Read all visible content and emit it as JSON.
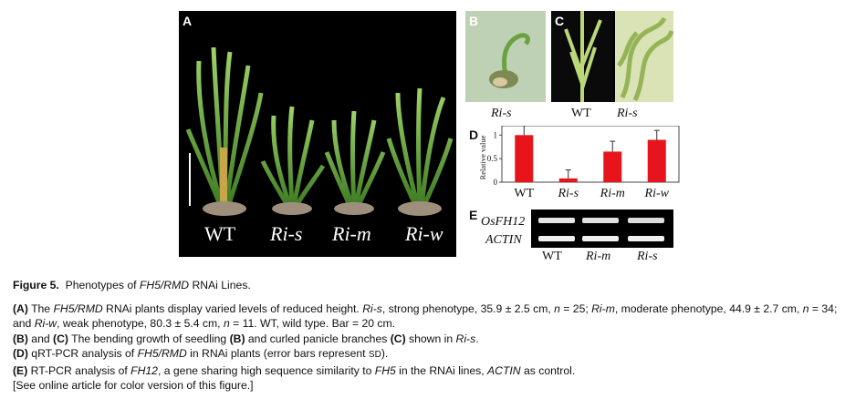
{
  "panels": {
    "A": {
      "label": "A",
      "genotypes": [
        {
          "text": "WT",
          "italic": false
        },
        {
          "text": "Ri-s",
          "italic": true
        },
        {
          "text": "Ri-m",
          "italic": true
        },
        {
          "text": "Ri-w",
          "italic": true
        }
      ]
    },
    "B": {
      "label": "B",
      "caption": "Ri-s"
    },
    "C": {
      "label": "C",
      "captions": [
        "WT",
        "Ri-s"
      ]
    },
    "D": {
      "label": "D",
      "ylabel": "Relative value",
      "yticks": [
        "0",
        "0.5",
        "1"
      ],
      "categories": [
        "WT",
        "Ri-s",
        "Ri-m",
        "Ri-w"
      ]
    },
    "E": {
      "label": "E",
      "row_labels": [
        "OsFH12",
        "ACTIN"
      ],
      "lanes": [
        "WT",
        "Ri-m",
        "Ri-s"
      ]
    }
  },
  "chart_data": {
    "type": "bar",
    "categories": [
      "WT",
      "Ri-s",
      "Ri-m",
      "Ri-w"
    ],
    "values": [
      1.0,
      0.08,
      0.65,
      0.9
    ],
    "errors": [
      0.2,
      0.18,
      0.22,
      0.2
    ],
    "ylabel": "Relative value",
    "ylim": [
      0,
      1.2
    ],
    "bar_color": "#e8141b"
  },
  "caption": {
    "title_prefix": "Figure 5.",
    "title_a": "Phenotypes of ",
    "title_b": "FH5/RMD",
    "title_c": " RNAi Lines.",
    "A_label": "(A)",
    "A_1": " The ",
    "A_2": "FH5/RMD",
    "A_3": " RNAi plants display varied levels of reduced height. ",
    "A_4": "Ri-s",
    "A_5": ", strong phenotype, 35.9 ± 2.5 cm, ",
    "A_6": "n",
    "A_7": " = 25; ",
    "A_8": "Ri-m",
    "A_9": ", moderate phenotype, 44.9 ± 2.7 cm, ",
    "A_10": "n",
    "A_11": " = 34; and ",
    "A_12": "Ri-w",
    "A_13": ", weak phenotype, 80.3 ± 5.4 cm, ",
    "A_14": "n",
    "A_15": " = 11. WT, wild type. Bar = 20 cm.",
    "BC_label1": "(B)",
    "BC_and": " and ",
    "BC_label2": "(C)",
    "BC_1": " The bending growth of seedling ",
    "BC_2": "(B)",
    "BC_3": " and curled panicle branches ",
    "BC_4": "(C)",
    "BC_5": " shown in ",
    "BC_6": "Ri-s",
    "BC_7": ".",
    "D_label": "(D)",
    "D_1": " qRT-PCR analysis of ",
    "D_2": "FH5/RMD",
    "D_3": " in RNAi plants (error bars represent ",
    "D_4": "SD",
    "D_5": ").",
    "E_label": "(E)",
    "E_1": " RT-PCR analysis of ",
    "E_2": "FH12",
    "E_3": ", a gene sharing high sequence similarity to ",
    "E_4": "FH5",
    "E_5": " in the RNAi lines, ",
    "E_6": "ACTIN",
    "E_7": " as control.",
    "note": "[See online article for color version of this figure.]"
  }
}
